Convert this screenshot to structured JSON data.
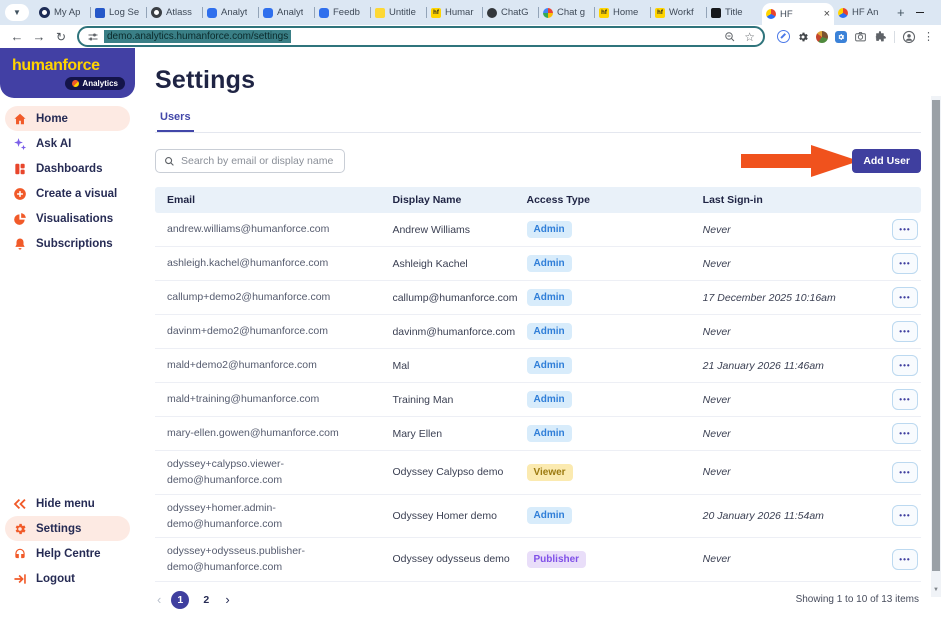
{
  "browser": {
    "tabs": [
      {
        "label": "My Ap",
        "style": "navy-ring",
        "icon": "myapps-favicon"
      },
      {
        "label": "Log Se",
        "style": "bluesq",
        "icon": "logsearch-favicon"
      },
      {
        "label": "Atlass",
        "style": "dark-ring",
        "icon": "atlassian-favicon"
      },
      {
        "label": "Analyt",
        "style": "blue",
        "icon": "analytics-favicon"
      },
      {
        "label": "Analyt",
        "style": "blue",
        "icon": "analytics-favicon"
      },
      {
        "label": "Feedb",
        "style": "blue",
        "icon": "feedback-favicon"
      },
      {
        "label": "Untitle",
        "style": "yellow",
        "icon": "untitled-favicon"
      },
      {
        "label": "Humar",
        "style": "hf",
        "icon": "humanforce-favicon"
      },
      {
        "label": "ChatG",
        "style": "dark",
        "icon": "chatgpt-favicon"
      },
      {
        "label": "Chat g",
        "style": "google",
        "icon": "google-favicon"
      },
      {
        "label": "Home",
        "style": "hf",
        "icon": "humanforce-favicon"
      },
      {
        "label": "Workf",
        "style": "hf",
        "icon": "humanforce-favicon"
      },
      {
        "label": "Title",
        "style": "black",
        "icon": "title-favicon"
      },
      {
        "label": "HF",
        "style": "hfa",
        "icon": "hf-analytics-favicon",
        "active": true
      },
      {
        "label": "HF An",
        "style": "hfa",
        "icon": "hf-analytics-favicon"
      }
    ],
    "new_tab_label": "+",
    "url": "demo.analytics.humanforce.com/settings"
  },
  "sidebar": {
    "logo_text": "humanforce",
    "logo_badge": "Analytics",
    "items": [
      {
        "label": "Home",
        "icon": "home-icon",
        "active": true
      },
      {
        "label": "Ask AI",
        "icon": "sparkles-icon",
        "active": false
      },
      {
        "label": "Dashboards",
        "icon": "dashboard-icon",
        "active": false
      },
      {
        "label": "Create a visual",
        "icon": "plus-circle-icon",
        "active": false
      },
      {
        "label": "Visualisations",
        "icon": "pie-chart-icon",
        "active": false
      },
      {
        "label": "Subscriptions",
        "icon": "bell-icon",
        "active": false
      }
    ],
    "footer_items": [
      {
        "label": "Hide menu",
        "icon": "collapse-icon",
        "active": false
      },
      {
        "label": "Settings",
        "icon": "gear-icon",
        "active": true
      },
      {
        "label": "Help Centre",
        "icon": "headset-icon",
        "active": false
      },
      {
        "label": "Logout",
        "icon": "logout-icon",
        "active": false
      }
    ]
  },
  "main": {
    "title": "Settings",
    "tab_label": "Users",
    "search_placeholder": "Search by email or display name",
    "add_user_label": "Add User"
  },
  "table": {
    "headers": [
      "Email",
      "Display Name",
      "Access Type",
      "Last Sign-in"
    ],
    "rows": [
      {
        "email": "andrew.williams@humanforce.com",
        "display_name": "Andrew Williams",
        "access_type": "Admin",
        "last_sign_in": "Never"
      },
      {
        "email": "ashleigh.kachel@humanforce.com",
        "display_name": "Ashleigh Kachel",
        "access_type": "Admin",
        "last_sign_in": "Never"
      },
      {
        "email": "callump+demo2@humanforce.com",
        "display_name": "callump@humanforce.com",
        "access_type": "Admin",
        "last_sign_in": "17 December 2025 10:16am"
      },
      {
        "email": "davinm+demo2@humanforce.com",
        "display_name": "davinm@humanforce.com",
        "access_type": "Admin",
        "last_sign_in": "Never"
      },
      {
        "email": "mald+demo2@humanforce.com",
        "display_name": "Mal",
        "access_type": "Admin",
        "last_sign_in": "21 January 2026 11:46am"
      },
      {
        "email": "mald+training@humanforce.com",
        "display_name": "Training Man",
        "access_type": "Admin",
        "last_sign_in": "Never"
      },
      {
        "email": "mary-ellen.gowen@humanforce.com",
        "display_name": "Mary Ellen",
        "access_type": "Admin",
        "last_sign_in": "Never"
      },
      {
        "email": "odyssey+calypso.viewer-demo@humanforce.com",
        "display_name": "Odyssey Calypso demo",
        "access_type": "Viewer",
        "last_sign_in": "Never"
      },
      {
        "email": "odyssey+homer.admin-demo@humanforce.com",
        "display_name": "Odyssey Homer demo",
        "access_type": "Admin",
        "last_sign_in": "20 January 2026 11:54am"
      },
      {
        "email": "odyssey+odysseus.publisher-demo@humanforce.com",
        "display_name": "Odyssey odysseus demo",
        "access_type": "Publisher",
        "last_sign_in": "Never"
      }
    ]
  },
  "pagination": {
    "pages": [
      "1",
      "2"
    ],
    "active_page": "1",
    "prev_label": "‹",
    "next_label": "›",
    "summary": "Showing 1 to 10 of 13 items"
  },
  "colors": {
    "brand_purple": "#4240a4",
    "accent_orange": "#f15a29",
    "button_indigo": "#3f3f9f",
    "annotation_arrow": "#f0521d",
    "badge_admin_bg": "#d8ecfb",
    "badge_admin_text": "#2f7ed8",
    "badge_viewer_bg": "#fbeab0",
    "badge_viewer_text": "#9c7a10",
    "badge_publisher_bg": "#e9def9",
    "badge_publisher_text": "#8050e8"
  }
}
